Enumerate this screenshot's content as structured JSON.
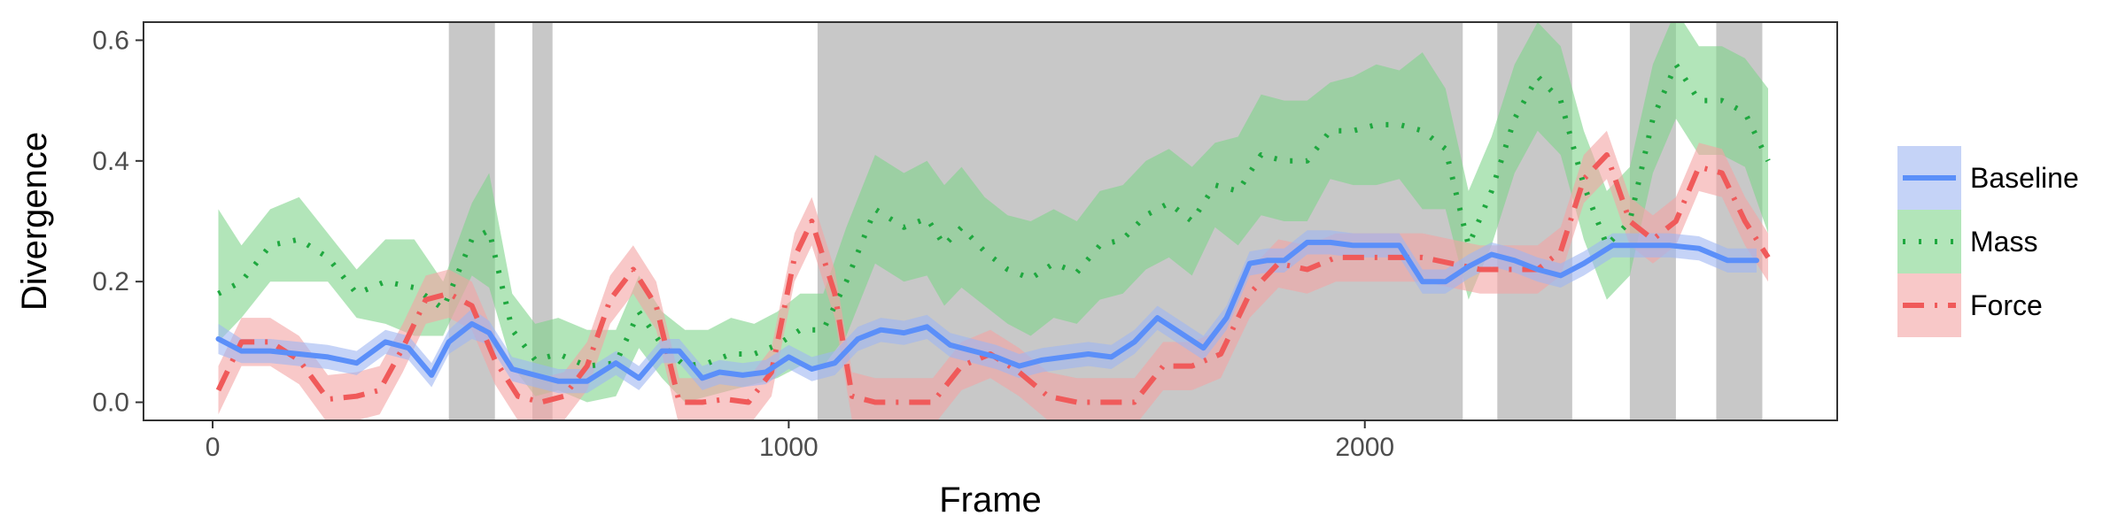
{
  "chart_data": {
    "type": "line",
    "xlabel": "Frame",
    "ylabel": "Divergence",
    "xlim": [
      -120,
      2820
    ],
    "ylim": [
      -0.03,
      0.63
    ],
    "x_ticks": [
      0,
      1000,
      2000
    ],
    "y_ticks": [
      0.0,
      0.2,
      0.4,
      0.6
    ],
    "x_tick_labels": [
      "0",
      "1000",
      "2000"
    ],
    "y_tick_labels": [
      "0.0",
      "0.2",
      "0.4",
      "0.6"
    ],
    "grid": false,
    "legend_position": "right",
    "shaded_regions": [
      [
        410,
        490
      ],
      [
        555,
        590
      ],
      [
        1050,
        2170
      ],
      [
        2230,
        2360
      ],
      [
        2460,
        2540
      ],
      [
        2610,
        2690
      ]
    ],
    "series": [
      {
        "name": "Baseline",
        "style": "solid",
        "color": "#5b8ff9",
        "band_color": "#9fb6f2",
        "x": [
          10,
          50,
          100,
          150,
          200,
          250,
          300,
          340,
          380,
          410,
          450,
          480,
          520,
          560,
          600,
          650,
          700,
          740,
          780,
          810,
          850,
          880,
          920,
          960,
          1000,
          1040,
          1080,
          1120,
          1160,
          1200,
          1240,
          1280,
          1320,
          1360,
          1400,
          1440,
          1480,
          1520,
          1560,
          1600,
          1640,
          1680,
          1720,
          1760,
          1800,
          1830,
          1860,
          1900,
          1940,
          1980,
          2020,
          2060,
          2100,
          2140,
          2180,
          2220,
          2260,
          2300,
          2340,
          2380,
          2430,
          2480,
          2530,
          2580,
          2630,
          2680
        ],
        "y": [
          0.105,
          0.085,
          0.085,
          0.08,
          0.075,
          0.065,
          0.1,
          0.09,
          0.045,
          0.1,
          0.13,
          0.115,
          0.055,
          0.045,
          0.035,
          0.035,
          0.065,
          0.04,
          0.085,
          0.085,
          0.04,
          0.05,
          0.045,
          0.05,
          0.075,
          0.055,
          0.065,
          0.105,
          0.12,
          0.115,
          0.125,
          0.095,
          0.085,
          0.075,
          0.06,
          0.07,
          0.075,
          0.08,
          0.075,
          0.1,
          0.14,
          0.115,
          0.09,
          0.14,
          0.23,
          0.235,
          0.235,
          0.265,
          0.265,
          0.26,
          0.26,
          0.26,
          0.2,
          0.2,
          0.225,
          0.245,
          0.235,
          0.22,
          0.21,
          0.23,
          0.26,
          0.26,
          0.26,
          0.255,
          0.235,
          0.235
        ],
        "upper": [
          0.13,
          0.105,
          0.105,
          0.1,
          0.095,
          0.085,
          0.12,
          0.11,
          0.065,
          0.12,
          0.155,
          0.135,
          0.075,
          0.065,
          0.055,
          0.055,
          0.085,
          0.06,
          0.105,
          0.105,
          0.06,
          0.07,
          0.065,
          0.07,
          0.095,
          0.075,
          0.085,
          0.125,
          0.14,
          0.135,
          0.145,
          0.115,
          0.105,
          0.095,
          0.08,
          0.09,
          0.095,
          0.1,
          0.095,
          0.12,
          0.16,
          0.135,
          0.11,
          0.16,
          0.25,
          0.255,
          0.255,
          0.285,
          0.285,
          0.28,
          0.28,
          0.28,
          0.22,
          0.22,
          0.245,
          0.265,
          0.255,
          0.24,
          0.23,
          0.25,
          0.28,
          0.28,
          0.28,
          0.275,
          0.255,
          0.255
        ],
        "lower": [
          0.08,
          0.065,
          0.065,
          0.06,
          0.055,
          0.045,
          0.08,
          0.07,
          0.025,
          0.08,
          0.105,
          0.095,
          0.035,
          0.025,
          0.015,
          0.015,
          0.045,
          0.02,
          0.065,
          0.065,
          0.02,
          0.03,
          0.025,
          0.03,
          0.055,
          0.035,
          0.045,
          0.085,
          0.1,
          0.095,
          0.105,
          0.075,
          0.065,
          0.055,
          0.04,
          0.05,
          0.055,
          0.06,
          0.055,
          0.08,
          0.12,
          0.095,
          0.07,
          0.12,
          0.21,
          0.215,
          0.215,
          0.245,
          0.245,
          0.24,
          0.24,
          0.24,
          0.18,
          0.18,
          0.205,
          0.225,
          0.215,
          0.2,
          0.19,
          0.21,
          0.24,
          0.24,
          0.24,
          0.235,
          0.215,
          0.215
        ]
      },
      {
        "name": "Mass",
        "style": "dotted",
        "color": "#1fa83f",
        "band_color": "#7ed38b",
        "x": [
          10,
          50,
          100,
          150,
          200,
          250,
          300,
          350,
          400,
          450,
          480,
          520,
          560,
          600,
          650,
          700,
          740,
          780,
          820,
          860,
          900,
          940,
          980,
          1020,
          1060,
          1100,
          1150,
          1200,
          1240,
          1270,
          1300,
          1340,
          1380,
          1420,
          1460,
          1500,
          1540,
          1580,
          1620,
          1660,
          1700,
          1740,
          1780,
          1820,
          1860,
          1900,
          1940,
          1980,
          2020,
          2060,
          2100,
          2140,
          2180,
          2220,
          2260,
          2300,
          2340,
          2380,
          2420,
          2460,
          2500,
          2540,
          2580,
          2620,
          2660,
          2700
        ],
        "y": [
          0.18,
          0.2,
          0.26,
          0.27,
          0.24,
          0.18,
          0.2,
          0.19,
          0.155,
          0.27,
          0.285,
          0.12,
          0.07,
          0.08,
          0.06,
          0.065,
          0.15,
          0.095,
          0.06,
          0.065,
          0.08,
          0.08,
          0.095,
          0.12,
          0.12,
          0.2,
          0.32,
          0.29,
          0.305,
          0.26,
          0.29,
          0.25,
          0.22,
          0.205,
          0.23,
          0.215,
          0.26,
          0.27,
          0.31,
          0.33,
          0.3,
          0.36,
          0.35,
          0.41,
          0.4,
          0.4,
          0.45,
          0.45,
          0.46,
          0.46,
          0.45,
          0.42,
          0.26,
          0.35,
          0.47,
          0.54,
          0.5,
          0.36,
          0.26,
          0.3,
          0.47,
          0.56,
          0.5,
          0.5,
          0.48,
          0.4
        ],
        "upper": [
          0.32,
          0.26,
          0.32,
          0.34,
          0.28,
          0.22,
          0.27,
          0.27,
          0.2,
          0.33,
          0.38,
          0.18,
          0.13,
          0.14,
          0.12,
          0.12,
          0.21,
          0.15,
          0.12,
          0.12,
          0.14,
          0.13,
          0.15,
          0.18,
          0.18,
          0.29,
          0.41,
          0.38,
          0.4,
          0.36,
          0.39,
          0.34,
          0.31,
          0.3,
          0.32,
          0.3,
          0.35,
          0.36,
          0.4,
          0.42,
          0.39,
          0.43,
          0.44,
          0.51,
          0.5,
          0.5,
          0.53,
          0.54,
          0.56,
          0.55,
          0.58,
          0.52,
          0.35,
          0.44,
          0.56,
          0.63,
          0.59,
          0.45,
          0.35,
          0.39,
          0.56,
          0.65,
          0.59,
          0.59,
          0.57,
          0.52
        ],
        "lower": [
          0.1,
          0.14,
          0.2,
          0.2,
          0.2,
          0.14,
          0.13,
          0.11,
          0.11,
          0.21,
          0.19,
          0.06,
          0.01,
          0.02,
          0.0,
          0.01,
          0.09,
          0.04,
          0.0,
          0.01,
          0.02,
          0.03,
          0.04,
          0.06,
          0.06,
          0.11,
          0.23,
          0.2,
          0.21,
          0.16,
          0.19,
          0.16,
          0.13,
          0.11,
          0.14,
          0.13,
          0.17,
          0.18,
          0.22,
          0.24,
          0.21,
          0.29,
          0.26,
          0.31,
          0.3,
          0.3,
          0.37,
          0.36,
          0.36,
          0.37,
          0.32,
          0.32,
          0.17,
          0.26,
          0.38,
          0.45,
          0.41,
          0.27,
          0.17,
          0.21,
          0.38,
          0.47,
          0.41,
          0.41,
          0.39,
          0.28
        ]
      },
      {
        "name": "Force",
        "style": "dashdot",
        "color": "#f05a5a",
        "band_color": "#f4a3a3",
        "x": [
          10,
          50,
          100,
          150,
          200,
          250,
          290,
          330,
          370,
          410,
          450,
          490,
          530,
          570,
          610,
          650,
          690,
          730,
          770,
          810,
          850,
          890,
          930,
          970,
          1010,
          1040,
          1080,
          1110,
          1150,
          1200,
          1250,
          1300,
          1350,
          1400,
          1450,
          1500,
          1550,
          1600,
          1650,
          1700,
          1750,
          1800,
          1850,
          1900,
          1950,
          2000,
          2050,
          2100,
          2150,
          2200,
          2250,
          2300,
          2340,
          2380,
          2420,
          2460,
          2500,
          2540,
          2580,
          2620,
          2660,
          2700
        ],
        "y": [
          0.02,
          0.1,
          0.1,
          0.07,
          0.005,
          0.01,
          0.02,
          0.09,
          0.17,
          0.18,
          0.16,
          0.07,
          0.01,
          0.0,
          0.01,
          0.06,
          0.17,
          0.22,
          0.16,
          0.0,
          0.0,
          0.005,
          0.0,
          0.05,
          0.24,
          0.3,
          0.18,
          0.01,
          0.0,
          0.0,
          0.0,
          0.06,
          0.08,
          0.05,
          0.01,
          0.0,
          0.0,
          0.0,
          0.06,
          0.06,
          0.08,
          0.18,
          0.23,
          0.22,
          0.24,
          0.24,
          0.24,
          0.24,
          0.23,
          0.22,
          0.22,
          0.22,
          0.25,
          0.37,
          0.41,
          0.3,
          0.27,
          0.3,
          0.39,
          0.38,
          0.3,
          0.24
        ],
        "upper": [
          0.06,
          0.14,
          0.14,
          0.11,
          0.045,
          0.05,
          0.06,
          0.13,
          0.21,
          0.22,
          0.2,
          0.11,
          0.05,
          0.04,
          0.05,
          0.1,
          0.21,
          0.26,
          0.2,
          0.04,
          0.04,
          0.045,
          0.04,
          0.09,
          0.28,
          0.34,
          0.22,
          0.05,
          0.04,
          0.04,
          0.04,
          0.1,
          0.12,
          0.09,
          0.05,
          0.04,
          0.04,
          0.04,
          0.1,
          0.1,
          0.12,
          0.22,
          0.27,
          0.26,
          0.28,
          0.28,
          0.28,
          0.28,
          0.27,
          0.26,
          0.26,
          0.26,
          0.29,
          0.41,
          0.45,
          0.34,
          0.31,
          0.34,
          0.43,
          0.42,
          0.34,
          0.28
        ],
        "lower": [
          -0.02,
          0.06,
          0.06,
          0.03,
          -0.035,
          -0.03,
          -0.02,
          0.05,
          0.13,
          0.14,
          0.12,
          0.03,
          -0.03,
          -0.04,
          -0.03,
          0.02,
          0.13,
          0.18,
          0.12,
          -0.04,
          -0.04,
          -0.035,
          -0.04,
          0.01,
          0.2,
          0.26,
          0.14,
          -0.03,
          -0.04,
          -0.04,
          -0.04,
          0.02,
          0.04,
          0.01,
          -0.03,
          -0.04,
          -0.04,
          -0.04,
          0.02,
          0.02,
          0.04,
          0.14,
          0.19,
          0.18,
          0.2,
          0.2,
          0.2,
          0.2,
          0.19,
          0.18,
          0.18,
          0.18,
          0.21,
          0.33,
          0.37,
          0.26,
          0.23,
          0.26,
          0.35,
          0.34,
          0.26,
          0.2
        ]
      }
    ]
  }
}
